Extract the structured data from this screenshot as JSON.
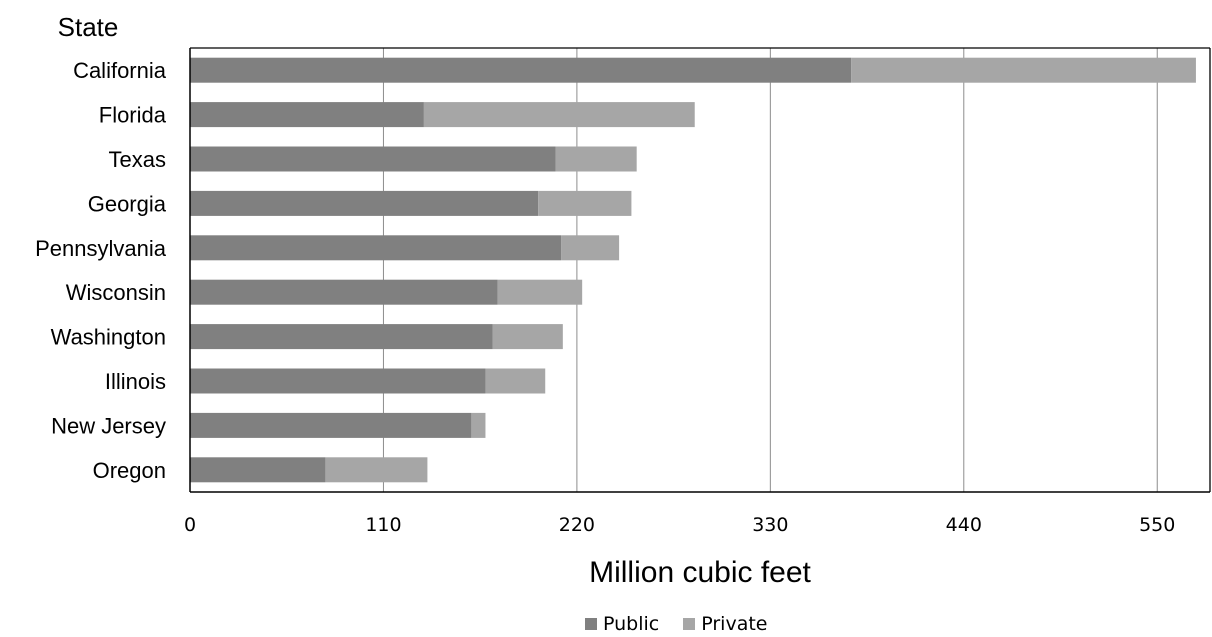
{
  "chart_data": {
    "type": "bar",
    "orientation": "horizontal",
    "stacked": true,
    "title": "",
    "ylabel": "State",
    "xlabel": "Million cubic feet",
    "xlim": [
      0,
      580
    ],
    "xticks": [
      0,
      110,
      220,
      330,
      440,
      550
    ],
    "grid": "vertical",
    "legend_position": "bottom",
    "categories": [
      "California",
      "Florida",
      "Texas",
      "Georgia",
      "Pennsylvania",
      "Wisconsin",
      "Washington",
      "Illinois",
      "New Jersey",
      "Oregon"
    ],
    "series": [
      {
        "name": "Public",
        "color": "#808080",
        "values": [
          376,
          133,
          208,
          198,
          211,
          175,
          172,
          168,
          160,
          77
        ]
      },
      {
        "name": "Private",
        "color": "#a6a6a6",
        "values": [
          196,
          154,
          46,
          53,
          33,
          48,
          40,
          34,
          8,
          58
        ]
      }
    ]
  }
}
